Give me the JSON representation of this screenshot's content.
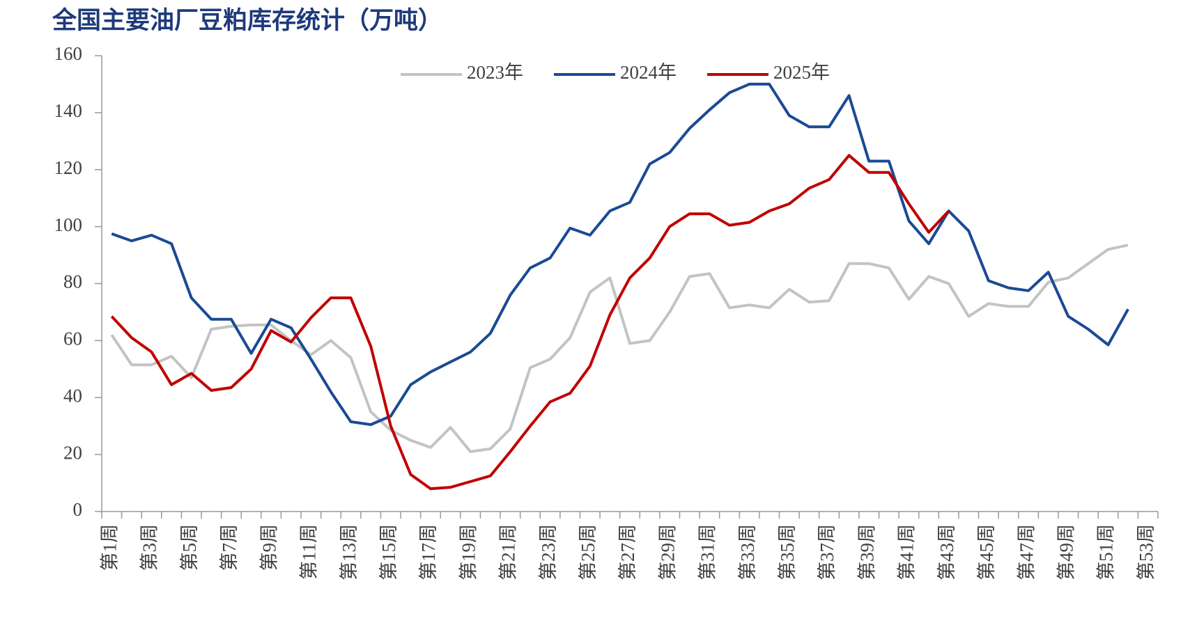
{
  "chart_data": {
    "type": "line",
    "title": "全国主要油厂豆粕库存统计（万吨）",
    "categories": [
      "第1周",
      null,
      "第3周",
      null,
      "第5周",
      null,
      "第7周",
      null,
      "第9周",
      null,
      "第11周",
      null,
      "第13周",
      null,
      "第15周",
      null,
      "第17周",
      null,
      "第19周",
      null,
      "第21周",
      null,
      "第23周",
      null,
      "第25周",
      null,
      "第27周",
      null,
      "第29周",
      null,
      "第31周",
      null,
      "第33周",
      null,
      "第35周",
      null,
      "第37周",
      null,
      "第39周",
      null,
      "第41周",
      null,
      "第43周",
      null,
      "第45周",
      null,
      "第47周",
      null,
      "第49周",
      null,
      "第51周",
      null,
      "第53周"
    ],
    "series": [
      {
        "name": "2023年",
        "color": "#c3c3c3",
        "values": [
          62,
          51.5,
          51.5,
          54.5,
          47,
          64,
          65,
          65.5,
          65.5,
          60,
          55,
          60,
          54,
          35,
          28.5,
          25,
          22.5,
          29.5,
          21,
          22,
          29,
          50.5,
          53.5,
          61,
          77,
          82,
          59,
          60,
          70,
          82.5,
          83.5,
          71.5,
          72.5,
          71.5,
          78,
          73.5,
          74,
          87,
          87,
          85.5,
          74.5,
          82.5,
          80,
          68.5,
          73,
          72,
          72,
          80.5,
          82,
          87,
          92,
          93.5,
          null
        ]
      },
      {
        "name": "2024年",
        "color": "#1a4a94",
        "values": [
          97.5,
          95,
          97,
          94,
          75,
          67.5,
          67.5,
          55.5,
          67.5,
          64.5,
          53.5,
          42,
          31.5,
          30.5,
          33.5,
          44.5,
          49,
          52.5,
          56,
          62.5,
          76,
          85.5,
          89,
          99.5,
          97,
          105.5,
          108.5,
          122,
          126,
          134.5,
          141,
          147,
          150,
          150,
          139,
          135,
          135,
          146,
          123,
          123,
          102,
          94,
          105.5,
          98.5,
          81,
          78.5,
          77.5,
          84,
          68.5,
          64,
          58.5,
          71,
          null
        ]
      },
      {
        "name": "2025年",
        "color": "#c00000",
        "values": [
          68.5,
          61,
          56,
          44.5,
          48.5,
          42.5,
          43.5,
          50,
          63.5,
          59.5,
          68,
          75,
          75,
          58,
          30,
          13,
          8,
          8.5,
          10.5,
          12.5,
          21,
          30,
          38.5,
          41.5,
          51,
          69,
          82,
          89,
          100,
          104.5,
          104.5,
          100.5,
          101.5,
          105.5,
          108,
          113.5,
          116.5,
          125,
          119,
          119,
          108,
          98,
          105.5,
          null,
          null,
          null,
          null,
          null,
          null,
          null,
          null,
          null,
          null
        ]
      }
    ],
    "ylim": [
      0,
      160
    ],
    "yticks": [
      0,
      20,
      40,
      60,
      80,
      100,
      120,
      140,
      160
    ],
    "grid": false,
    "legend": "top"
  }
}
